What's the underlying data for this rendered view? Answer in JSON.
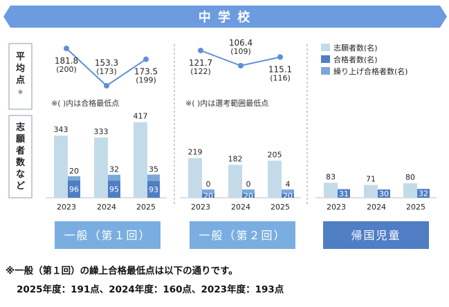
{
  "header": {
    "title": "中 学 校"
  },
  "row_labels": {
    "score": [
      "平",
      "均",
      "点",
      "※"
    ],
    "applicants": [
      "志",
      "願",
      "者",
      "数",
      "な",
      "ど"
    ]
  },
  "legend": [
    {
      "label": "志願者数(名)",
      "color": "#c3dbe8"
    },
    {
      "label": "合格者数(名)",
      "color": "#4f7ec4"
    },
    {
      "label": "繰り上げ合格者数(名)",
      "color": "#7aa7d8"
    }
  ],
  "colors": {
    "header_bg": "#6d9be0",
    "line": "#5e8fd6",
    "button_light": "#7aaee0",
    "button_dark": "#4f7ec4"
  },
  "chart_data": [
    {
      "type": "bar",
      "title": "一般（第１回）",
      "categories": [
        "2023",
        "2024",
        "2025"
      ],
      "series": [
        {
          "name": "志願者数(名)",
          "values": [
            343,
            333,
            417
          ]
        },
        {
          "name": "合格者数(名)",
          "values": [
            96,
            95,
            93
          ]
        },
        {
          "name": "繰り上げ合格者数(名)",
          "values": [
            20,
            32,
            35
          ]
        }
      ],
      "scores": {
        "type": "line",
        "values": [
          181.8,
          153.3,
          173.5
        ],
        "min_labels": [
          "(200)",
          "(173)",
          "(199)"
        ],
        "note": "※(  )内は合格最低点"
      }
    },
    {
      "type": "bar",
      "title": "一般（第２回）",
      "categories": [
        "2023",
        "2024",
        "2025"
      ],
      "series": [
        {
          "name": "志願者数(名)",
          "values": [
            219,
            182,
            205
          ]
        },
        {
          "name": "合格者数(名)",
          "values": [
            20,
            20,
            20
          ]
        },
        {
          "name": "繰り上げ合格者数(名)",
          "values": [
            0,
            0,
            4
          ]
        }
      ],
      "scores": {
        "type": "line",
        "values": [
          121.7,
          106.4,
          115.1
        ],
        "min_labels": [
          "(122)",
          "(109)",
          "(116)"
        ],
        "note": "※(  )内は選考範囲最低点"
      }
    },
    {
      "type": "bar",
      "title": "帰国児童",
      "categories": [
        "2023",
        "2024",
        "2025"
      ],
      "series": [
        {
          "name": "志願者数(名)",
          "values": [
            83,
            71,
            80
          ]
        },
        {
          "name": "合格者数(名)",
          "values": [
            31,
            30,
            32
          ]
        }
      ]
    }
  ],
  "footnote": {
    "line1": "※一般（第１回）の繰上合格最低点は以下の通りです。",
    "line2": "2025年度：191点、2024年度：160点、2023年度：193点"
  }
}
